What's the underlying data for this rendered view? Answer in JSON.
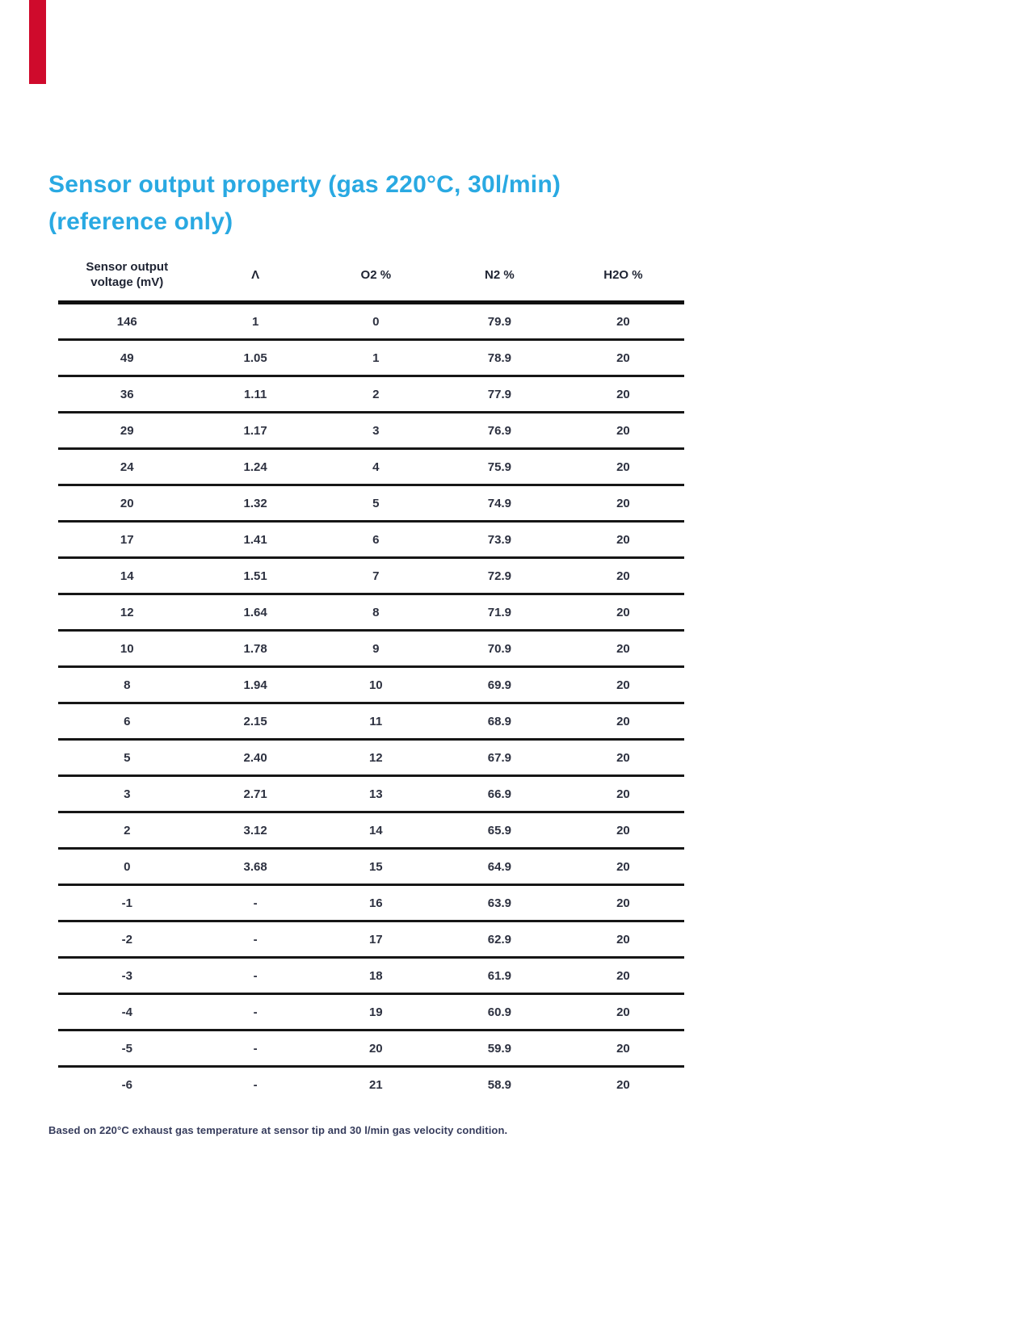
{
  "page": {
    "title_line1": "Sensor output property (gas 220°C, 30l/min)",
    "title_line2": "(reference only)",
    "footnote": "Based on 220°C exhaust gas temperature at sensor tip and 30 l/min gas velocity condition."
  },
  "colors": {
    "title": "#29a9e2",
    "accent_bar": "#cf0a2c",
    "table_text": "#2d3140",
    "table_rule": "#101010",
    "footnote": "#363c5c"
  },
  "table": {
    "columns": [
      "Sensor output\nvoltage (mV)",
      "Λ",
      "O2 %",
      "N2 %",
      "H2O %"
    ],
    "rows": [
      [
        "146",
        "1",
        "0",
        "79.9",
        "20"
      ],
      [
        "49",
        "1.05",
        "1",
        "78.9",
        "20"
      ],
      [
        "36",
        "1.11",
        "2",
        "77.9",
        "20"
      ],
      [
        "29",
        "1.17",
        "3",
        "76.9",
        "20"
      ],
      [
        "24",
        "1.24",
        "4",
        "75.9",
        "20"
      ],
      [
        "20",
        "1.32",
        "5",
        "74.9",
        "20"
      ],
      [
        "17",
        "1.41",
        "6",
        "73.9",
        "20"
      ],
      [
        "14",
        "1.51",
        "7",
        "72.9",
        "20"
      ],
      [
        "12",
        "1.64",
        "8",
        "71.9",
        "20"
      ],
      [
        "10",
        "1.78",
        "9",
        "70.9",
        "20"
      ],
      [
        "8",
        "1.94",
        "10",
        "69.9",
        "20"
      ],
      [
        "6",
        "2.15",
        "11",
        "68.9",
        "20"
      ],
      [
        "5",
        "2.40",
        "12",
        "67.9",
        "20"
      ],
      [
        "3",
        "2.71",
        "13",
        "66.9",
        "20"
      ],
      [
        "2",
        "3.12",
        "14",
        "65.9",
        "20"
      ],
      [
        "0",
        "3.68",
        "15",
        "64.9",
        "20"
      ],
      [
        "-1",
        "-",
        "16",
        "63.9",
        "20"
      ],
      [
        "-2",
        "-",
        "17",
        "62.9",
        "20"
      ],
      [
        "-3",
        "-",
        "18",
        "61.9",
        "20"
      ],
      [
        "-4",
        "-",
        "19",
        "60.9",
        "20"
      ],
      [
        "-5",
        "-",
        "20",
        "59.9",
        "20"
      ],
      [
        "-6",
        "-",
        "21",
        "58.9",
        "20"
      ]
    ]
  }
}
